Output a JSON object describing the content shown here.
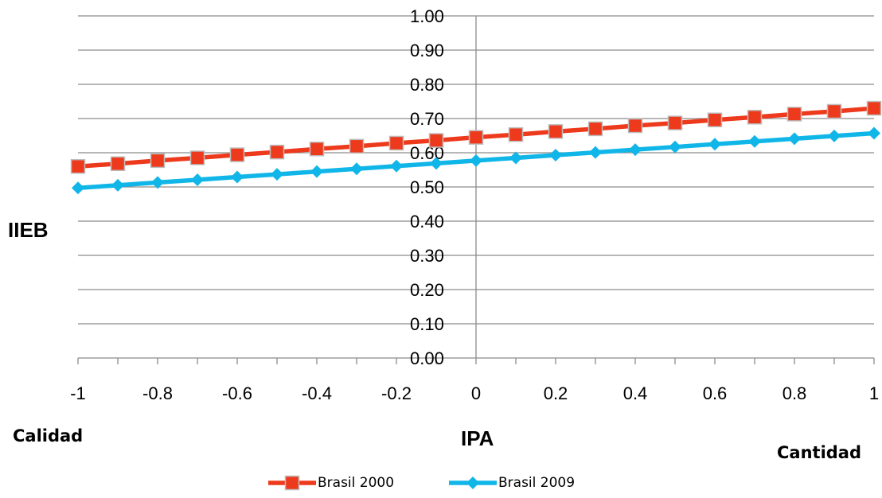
{
  "chart_data": {
    "type": "line",
    "x": [
      -1,
      -0.9,
      -0.8,
      -0.7,
      -0.6,
      -0.5,
      -0.4,
      -0.3,
      -0.2,
      -0.1,
      0,
      0.1,
      0.2,
      0.3,
      0.4,
      0.5,
      0.6,
      0.7,
      0.8,
      0.9,
      1
    ],
    "x_ticks": [
      -1,
      -0.8,
      -0.6,
      -0.4,
      -0.2,
      0,
      0.2,
      0.4,
      0.6,
      0.8,
      1
    ],
    "x_tick_labels": [
      "-1",
      "-0.8",
      "-0.6",
      "-0.4",
      "-0.2",
      "0",
      "0.2",
      "0.4",
      "0.6",
      "0.8",
      "1"
    ],
    "y_ticks": [
      0,
      0.1,
      0.2,
      0.3,
      0.4,
      0.5,
      0.6,
      0.7,
      0.8,
      0.9,
      1
    ],
    "y_tick_labels": [
      "0.00",
      "0.10",
      "0.20",
      "0.30",
      "0.40",
      "0.50",
      "0.60",
      "0.70",
      "0.80",
      "0.90",
      "1.00"
    ],
    "xlim": [
      -1,
      1
    ],
    "ylim": [
      0,
      1
    ],
    "xlabel": "IPA",
    "ylabel": "IIEB",
    "x_left_label": "Calidad",
    "x_right_label": "Cantidad",
    "grid": "horizontal",
    "legend_position": "bottom",
    "series": [
      {
        "name": "Brasil 2000",
        "color": "#ee3a1c",
        "marker": "square",
        "values": [
          0.56,
          0.568,
          0.577,
          0.585,
          0.594,
          0.602,
          0.611,
          0.619,
          0.628,
          0.636,
          0.645,
          0.653,
          0.662,
          0.67,
          0.679,
          0.687,
          0.696,
          0.704,
          0.713,
          0.721,
          0.73
        ]
      },
      {
        "name": "Brasil 2009",
        "color": "#11b6e8",
        "marker": "diamond",
        "values": [
          0.497,
          0.505,
          0.513,
          0.521,
          0.529,
          0.537,
          0.545,
          0.553,
          0.561,
          0.569,
          0.577,
          0.585,
          0.593,
          0.601,
          0.609,
          0.617,
          0.625,
          0.633,
          0.641,
          0.649,
          0.657
        ]
      }
    ]
  }
}
